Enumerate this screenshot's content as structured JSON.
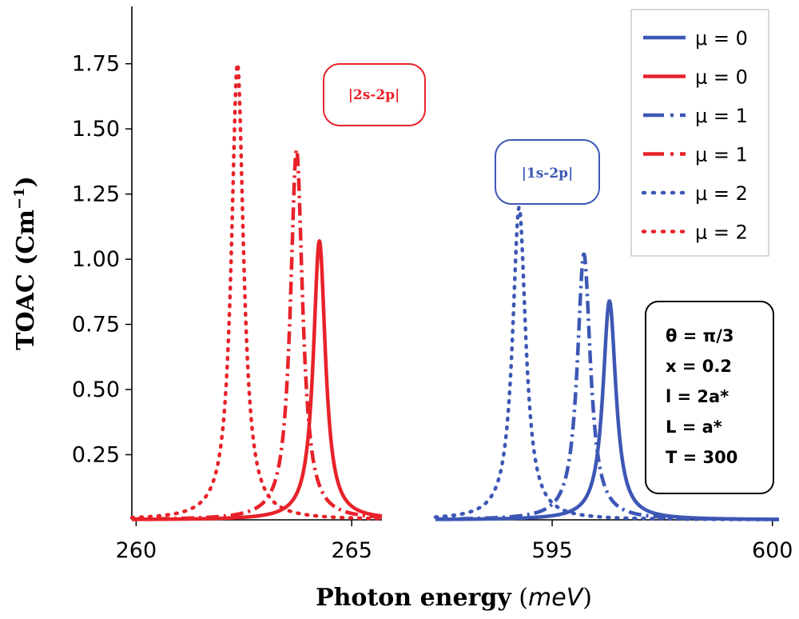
{
  "chart_data": {
    "type": "line",
    "ylabel": "TOAC (Cm",
    "ylabel_sup": "−1",
    "ylabel_close": ")",
    "xlabel": "Photon energy",
    "xlabel_unit": "meV",
    "ylim": [
      0,
      1.97
    ],
    "yticks": [
      "0.25",
      "0.50",
      "0.75",
      "1.00",
      "1.25",
      "1.50",
      "1.75"
    ],
    "ytick_values": [
      0.25,
      0.5,
      0.75,
      1.0,
      1.25,
      1.5,
      1.75
    ],
    "panels": [
      {
        "name": "2s-2p",
        "xlim": [
          259.9,
          265.7
        ],
        "xticks": [
          "260",
          "265"
        ],
        "xtick_values": [
          260,
          265
        ],
        "annotation": "|2s-2p|",
        "color": "#e8222a"
      },
      {
        "name": "1s-2p",
        "xlim": [
          592.35,
          600.15
        ],
        "xticks": [
          "595",
          "600"
        ],
        "xtick_values": [
          595,
          600
        ],
        "annotation": "|1s-2p|",
        "color": "#3d57b5"
      }
    ],
    "series": [
      {
        "name": "μ = 0",
        "panel": 0,
        "style": "solid",
        "color": "#e8222a",
        "center": 264.25,
        "peak": 1.07,
        "hwhm": 0.17
      },
      {
        "name": "μ = 1",
        "panel": 0,
        "style": "dashdot",
        "color": "#e8222a",
        "center": 263.72,
        "peak": 1.42,
        "hwhm": 0.17
      },
      {
        "name": "μ = 2",
        "panel": 0,
        "style": "dotted",
        "color": "#e8222a",
        "center": 262.35,
        "peak": 1.75,
        "hwhm": 0.17
      },
      {
        "name": "μ = 0",
        "panel": 1,
        "style": "solid",
        "color": "#3d57b5",
        "center": 596.3,
        "peak": 0.84,
        "hwhm": 0.18
      },
      {
        "name": "μ = 1",
        "panel": 1,
        "style": "dashdot",
        "color": "#3d57b5",
        "center": 595.72,
        "peak": 1.02,
        "hwhm": 0.18
      },
      {
        "name": "μ = 2",
        "panel": 1,
        "style": "dotted",
        "color": "#3d57b5",
        "center": 594.25,
        "peak": 1.2,
        "hwhm": 0.18
      }
    ],
    "legend": [
      {
        "label": "μ = 0",
        "style": "solid",
        "color": "#3d57b5"
      },
      {
        "label": "μ = 0",
        "style": "solid",
        "color": "#e8222a"
      },
      {
        "label": "μ = 1",
        "style": "dashdot",
        "color": "#3d57b5"
      },
      {
        "label": "μ = 1",
        "style": "dashdot",
        "color": "#e8222a"
      },
      {
        "label": "μ = 2",
        "style": "dotted",
        "color": "#3d57b5"
      },
      {
        "label": "μ = 2",
        "style": "dotted",
        "color": "#e8222a"
      }
    ],
    "params": [
      "θ = π/3",
      "x = 0.2",
      "l = 2a*",
      "L = a*",
      "T = 300"
    ]
  }
}
